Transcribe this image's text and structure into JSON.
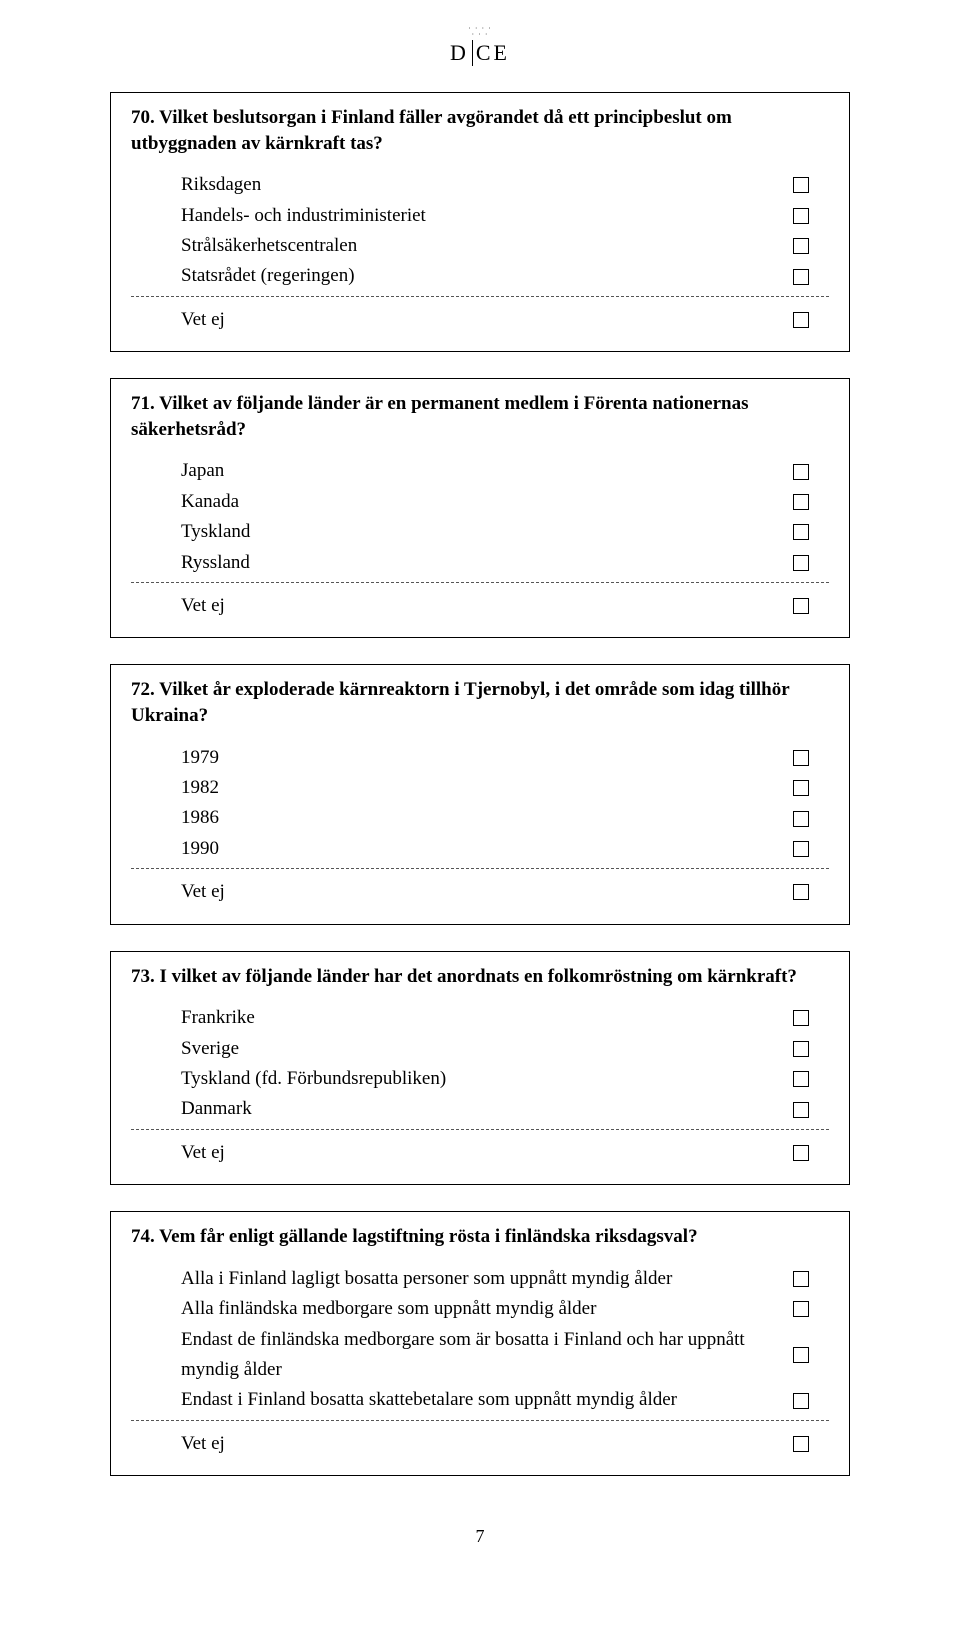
{
  "logo": {
    "left": "D",
    "right": "CE"
  },
  "page_number": "7",
  "questions": [
    {
      "number": "70.",
      "text": "Vilket beslutsorgan i Finland fäller avgörandet då ett principbeslut om utbyggnaden av kärnkraft tas?",
      "options": [
        "Riksdagen",
        "Handels- och industriministeriet",
        "Strålsäkerhetscentralen",
        "Statsrådet (regeringen)"
      ],
      "vetej": "Vet ej"
    },
    {
      "number": "71.",
      "text": "Vilket av följande länder är en permanent medlem i Förenta nationernas säkerhetsråd?",
      "options": [
        "Japan",
        "Kanada",
        "Tyskland",
        "Ryssland"
      ],
      "vetej": "Vet ej"
    },
    {
      "number": "72.",
      "text": "Vilket år exploderade kärnreaktorn i Tjernobyl, i det område som idag tillhör Ukraina?",
      "options": [
        "1979",
        "1982",
        "1986",
        "1990"
      ],
      "vetej": "Vet ej"
    },
    {
      "number": "73.",
      "text": "I vilket av följande länder har det anordnats en folkomröstning om kärnkraft?",
      "options": [
        "Frankrike",
        "Sverige",
        "Tyskland (fd. Förbundsrepubliken)",
        "Danmark"
      ],
      "vetej": "Vet ej"
    },
    {
      "number": "74.",
      "text": "Vem får enligt gällande lagstiftning rösta i finländska riksdagsval?",
      "options": [
        "Alla i Finland lagligt bosatta personer som uppnått myndig ålder",
        "Alla finländska medborgare som uppnått myndig ålder",
        "Endast de finländska medborgare som är bosatta i Finland och har uppnått myndig ålder",
        "Endast i Finland bosatta skattebetalare som uppnått myndig ålder"
      ],
      "vetej": "Vet ej"
    }
  ]
}
